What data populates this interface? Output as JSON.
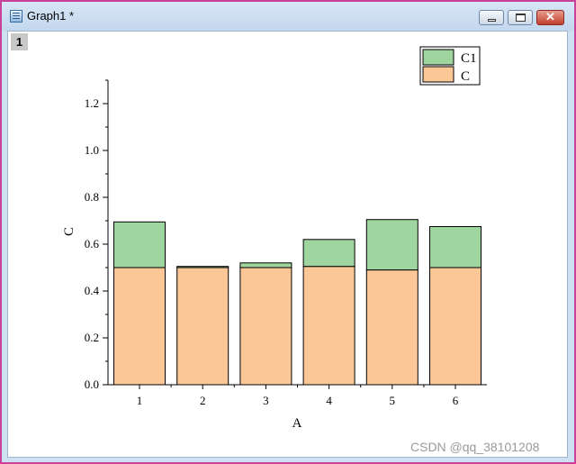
{
  "window": {
    "title": "Graph1 *",
    "layer_label": "1",
    "buttons": {
      "minimize": "minimize",
      "maximize": "maximize",
      "close": "✕"
    }
  },
  "chart_data": {
    "type": "bar",
    "stacked": true,
    "categories": [
      "1",
      "2",
      "3",
      "4",
      "5",
      "6"
    ],
    "series": [
      {
        "name": "C",
        "values": [
          0.5,
          0.5,
          0.5,
          0.505,
          0.49,
          0.5
        ],
        "color": "#fbc797"
      },
      {
        "name": "C1",
        "values": [
          0.195,
          0.005,
          0.02,
          0.115,
          0.215,
          0.175
        ],
        "color": "#9fd59f"
      }
    ],
    "xlabel": "A",
    "ylabel": "C",
    "ylim": [
      0,
      1.3
    ],
    "yticks": [
      "0.0",
      "0.2",
      "0.4",
      "0.6",
      "0.8",
      "1.0",
      "1.2"
    ],
    "grid": false,
    "legend": "top-right"
  },
  "watermark": "CSDN @qq_38101208"
}
